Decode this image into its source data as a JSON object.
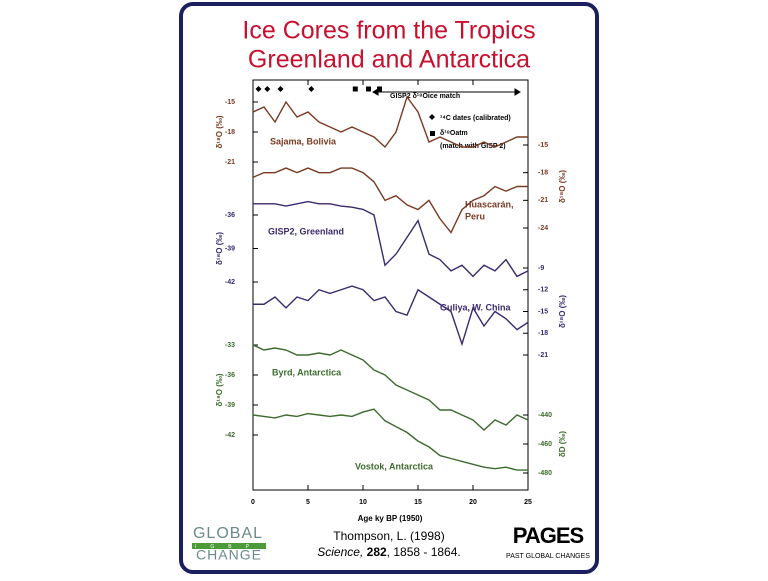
{
  "chart_data": {
    "type": "line",
    "title": [
      "Ice Cores from the Tropics",
      "Greenland and Antarctica"
    ],
    "xlabel": "Age ky BP (1950)",
    "xlim": [
      0,
      25
    ],
    "xticks": [
      0,
      5,
      10,
      15,
      20,
      25
    ],
    "x": [
      0,
      1,
      2,
      3,
      4,
      5,
      6,
      7,
      8,
      9,
      10,
      11,
      12,
      13,
      14,
      15,
      16,
      17,
      18,
      19,
      20,
      21,
      22,
      23,
      24,
      25
    ],
    "panels": [
      {
        "name": [
          "Sajama, Bolivia"
        ],
        "ylabel": "δ¹⁸O (‰)",
        "side": "left",
        "color": "#7a3a22",
        "ylim": [
          -21,
          -15
        ],
        "yticks": [
          -15,
          -18,
          -21
        ],
        "values": [
          -16,
          -15.5,
          -17,
          -15,
          -16.5,
          -16,
          -17,
          -17.5,
          -18,
          -17.5,
          -18,
          -18.5,
          -19.5,
          -18,
          -14.5,
          -16,
          -19,
          -18.5,
          -19,
          -19.5,
          -19.5,
          -19,
          -19.5,
          -19,
          -18.5,
          -18.5
        ]
      },
      {
        "name": [
          "Huascarán,",
          "Peru"
        ],
        "ylabel": "δ¹⁸O (‰)",
        "side": "right",
        "color": "#7a3a22",
        "ylim": [
          -24,
          -15
        ],
        "yticks": [
          -15,
          -18,
          -21,
          -24
        ],
        "values": [
          -18.5,
          -18,
          -18,
          -17.5,
          -18,
          -17.5,
          -18,
          -18,
          -17.5,
          -17.5,
          -18,
          -19,
          -21,
          -20.5,
          -21.5,
          -22,
          -21,
          -23,
          -24.5,
          -22,
          -21,
          -20.5,
          -19.5,
          -20,
          -19.5,
          -19.5
        ]
      },
      {
        "name": [
          "GISP2, Greenland"
        ],
        "ylabel": "δ¹⁸O (‰)",
        "side": "left",
        "color": "#3b2a6e",
        "ylim": [
          -42,
          -36
        ],
        "yticks": [
          -36,
          -39,
          -42
        ],
        "values": [
          -35,
          -35,
          -35,
          -35.2,
          -35,
          -34.8,
          -35,
          -35,
          -35.2,
          -35.3,
          -35.5,
          -36,
          -40.5,
          -39.5,
          -38,
          -36.5,
          -39.5,
          -40,
          -41,
          -40.5,
          -41.5,
          -40.5,
          -41,
          -40,
          -41.5,
          -41
        ]
      },
      {
        "name": [
          "Guliya, W. China"
        ],
        "ylabel": "δ¹⁸O (‰)",
        "side": "right",
        "color": "#3b2a6e",
        "ylim": [
          -21,
          -9
        ],
        "yticks": [
          -9,
          -12,
          -15,
          -18,
          -21
        ],
        "values": [
          -14,
          -14,
          -13,
          -14.5,
          -13,
          -13.5,
          -12,
          -12.5,
          -12,
          -11.5,
          -12,
          -13.5,
          -13,
          -15,
          -15.5,
          -12,
          -13,
          -14,
          -15,
          -19.5,
          -14.5,
          -17,
          -15,
          -16,
          -17.5,
          -16.5
        ]
      },
      {
        "name": [
          "Byrd, Antarctica"
        ],
        "ylabel": "δ¹⁸O (‰)",
        "side": "left",
        "color": "#3d6b2e",
        "ylim": [
          -42,
          -33
        ],
        "yticks": [
          -33,
          -36,
          -39,
          -42
        ],
        "values": [
          -33,
          -33.5,
          -33.3,
          -33.5,
          -34,
          -34,
          -33.8,
          -34,
          -33.5,
          -34,
          -34.5,
          -35.5,
          -36,
          -37,
          -37.5,
          -38,
          -38.5,
          -39.5,
          -39.5,
          -40,
          -40.5,
          -41.5,
          -40.5,
          -41,
          -40,
          -40.5
        ]
      },
      {
        "name": [
          "Vostok, Antarctica"
        ],
        "ylabel": "δD (‰)",
        "side": "right",
        "color": "#3d6b2e",
        "ylim": [
          -480,
          -440
        ],
        "yticks": [
          -440,
          -460,
          -480
        ],
        "values": [
          -440,
          -441,
          -442,
          -440,
          -441,
          -439,
          -440,
          -441,
          -440,
          -441,
          -438,
          -436,
          -444,
          -448,
          -452,
          -458,
          -462,
          -468,
          -470,
          -472,
          -474,
          -476,
          -477,
          -476,
          -478,
          -478
        ]
      }
    ],
    "c14_dates": [
      0.5,
      1.3,
      2.5,
      5.3
    ],
    "o18atm_dates": [
      9.3,
      10.5,
      11.5
    ],
    "legend": {
      "c14": "¹⁴C dates (calibrated)",
      "o18atm": "δ¹⁸Oatm",
      "o18atm_note": "(match with GISP 2)",
      "gisp2_match": "GISP2 δ¹⁸Oice match"
    }
  },
  "footer": {
    "citation": "Thompson, L. (1998)",
    "journal": "Science,",
    "volume": "282",
    "pages": ", 1858 - 1864.",
    "logo_left": {
      "title": "GLOBAL",
      "band": "IGBP",
      "subtitle": "CHANGE"
    },
    "logo_right": {
      "title": "PAGES",
      "subtitle": "PAST GLOBAL CHANGES"
    }
  }
}
